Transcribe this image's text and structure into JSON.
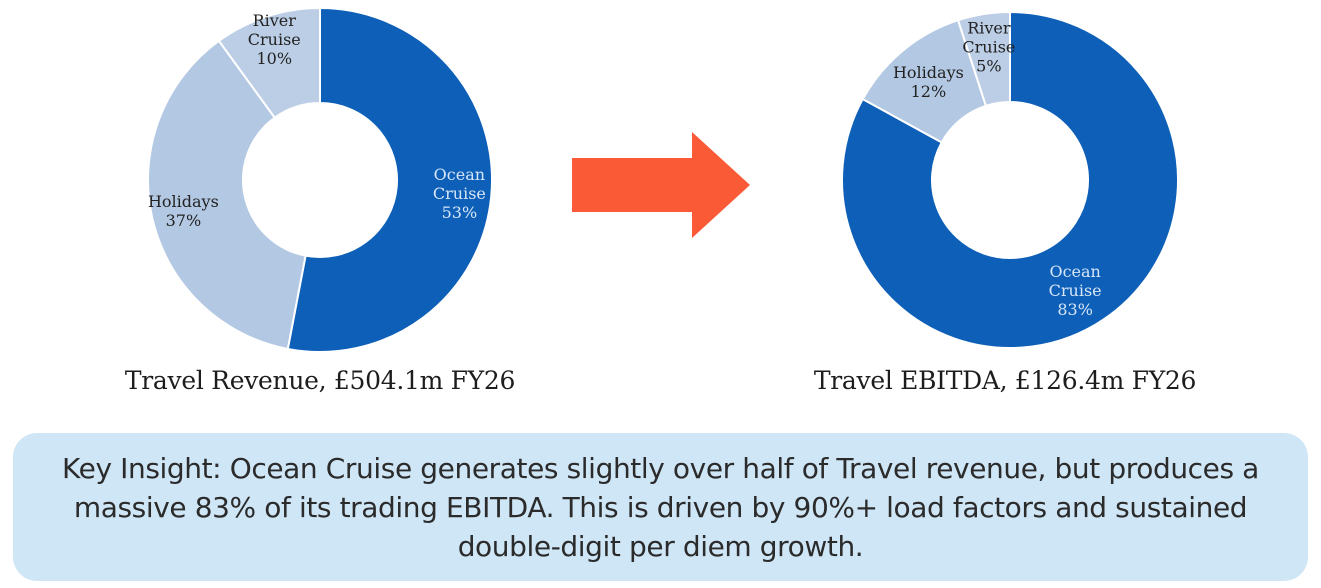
{
  "colors": {
    "ocean": "#0d5fb8",
    "holidays": "#b3c8e3",
    "river": "#bccee6",
    "arrow": "#fb5a36",
    "insight_bg": "#cfe6f6"
  },
  "chart_data": [
    {
      "type": "pie",
      "donut": true,
      "title": "Travel Revenue, £504.1m FY26",
      "slices": [
        {
          "label": [
            "Ocean",
            "Cruise"
          ],
          "value": 53,
          "value_label": "53%",
          "color": "#0d5fb8",
          "label_color": "#d7e6f7"
        },
        {
          "label": [
            "Holidays"
          ],
          "value": 37,
          "value_label": "37%",
          "color": "#b3c8e3",
          "label_color": "#222222"
        },
        {
          "label": [
            "River",
            "Cruise"
          ],
          "value": 10,
          "value_label": "10%",
          "color": "#bccee6",
          "label_color": "#222222"
        }
      ]
    },
    {
      "type": "pie",
      "donut": true,
      "title": "Travel EBITDA, £126.4m FY26",
      "slices": [
        {
          "label": [
            "Ocean",
            "Cruise"
          ],
          "value": 83,
          "value_label": "83%",
          "color": "#0d5fb8",
          "label_color": "#d7e6f7"
        },
        {
          "label": [
            "Holidays"
          ],
          "value": 12,
          "value_label": "12%",
          "color": "#b3c8e3",
          "label_color": "#222222"
        },
        {
          "label": [
            "River",
            "Cruise"
          ],
          "value": 5,
          "value_label": "5%",
          "color": "#bccee6",
          "label_color": "#222222"
        }
      ]
    }
  ],
  "insight": {
    "text": "Key Insight: Ocean Cruise generates slightly over half of Travel revenue, but produces a massive 83% of its trading EBITDA. This is driven by 90%+ load factors and sustained double-digit per diem growth."
  }
}
